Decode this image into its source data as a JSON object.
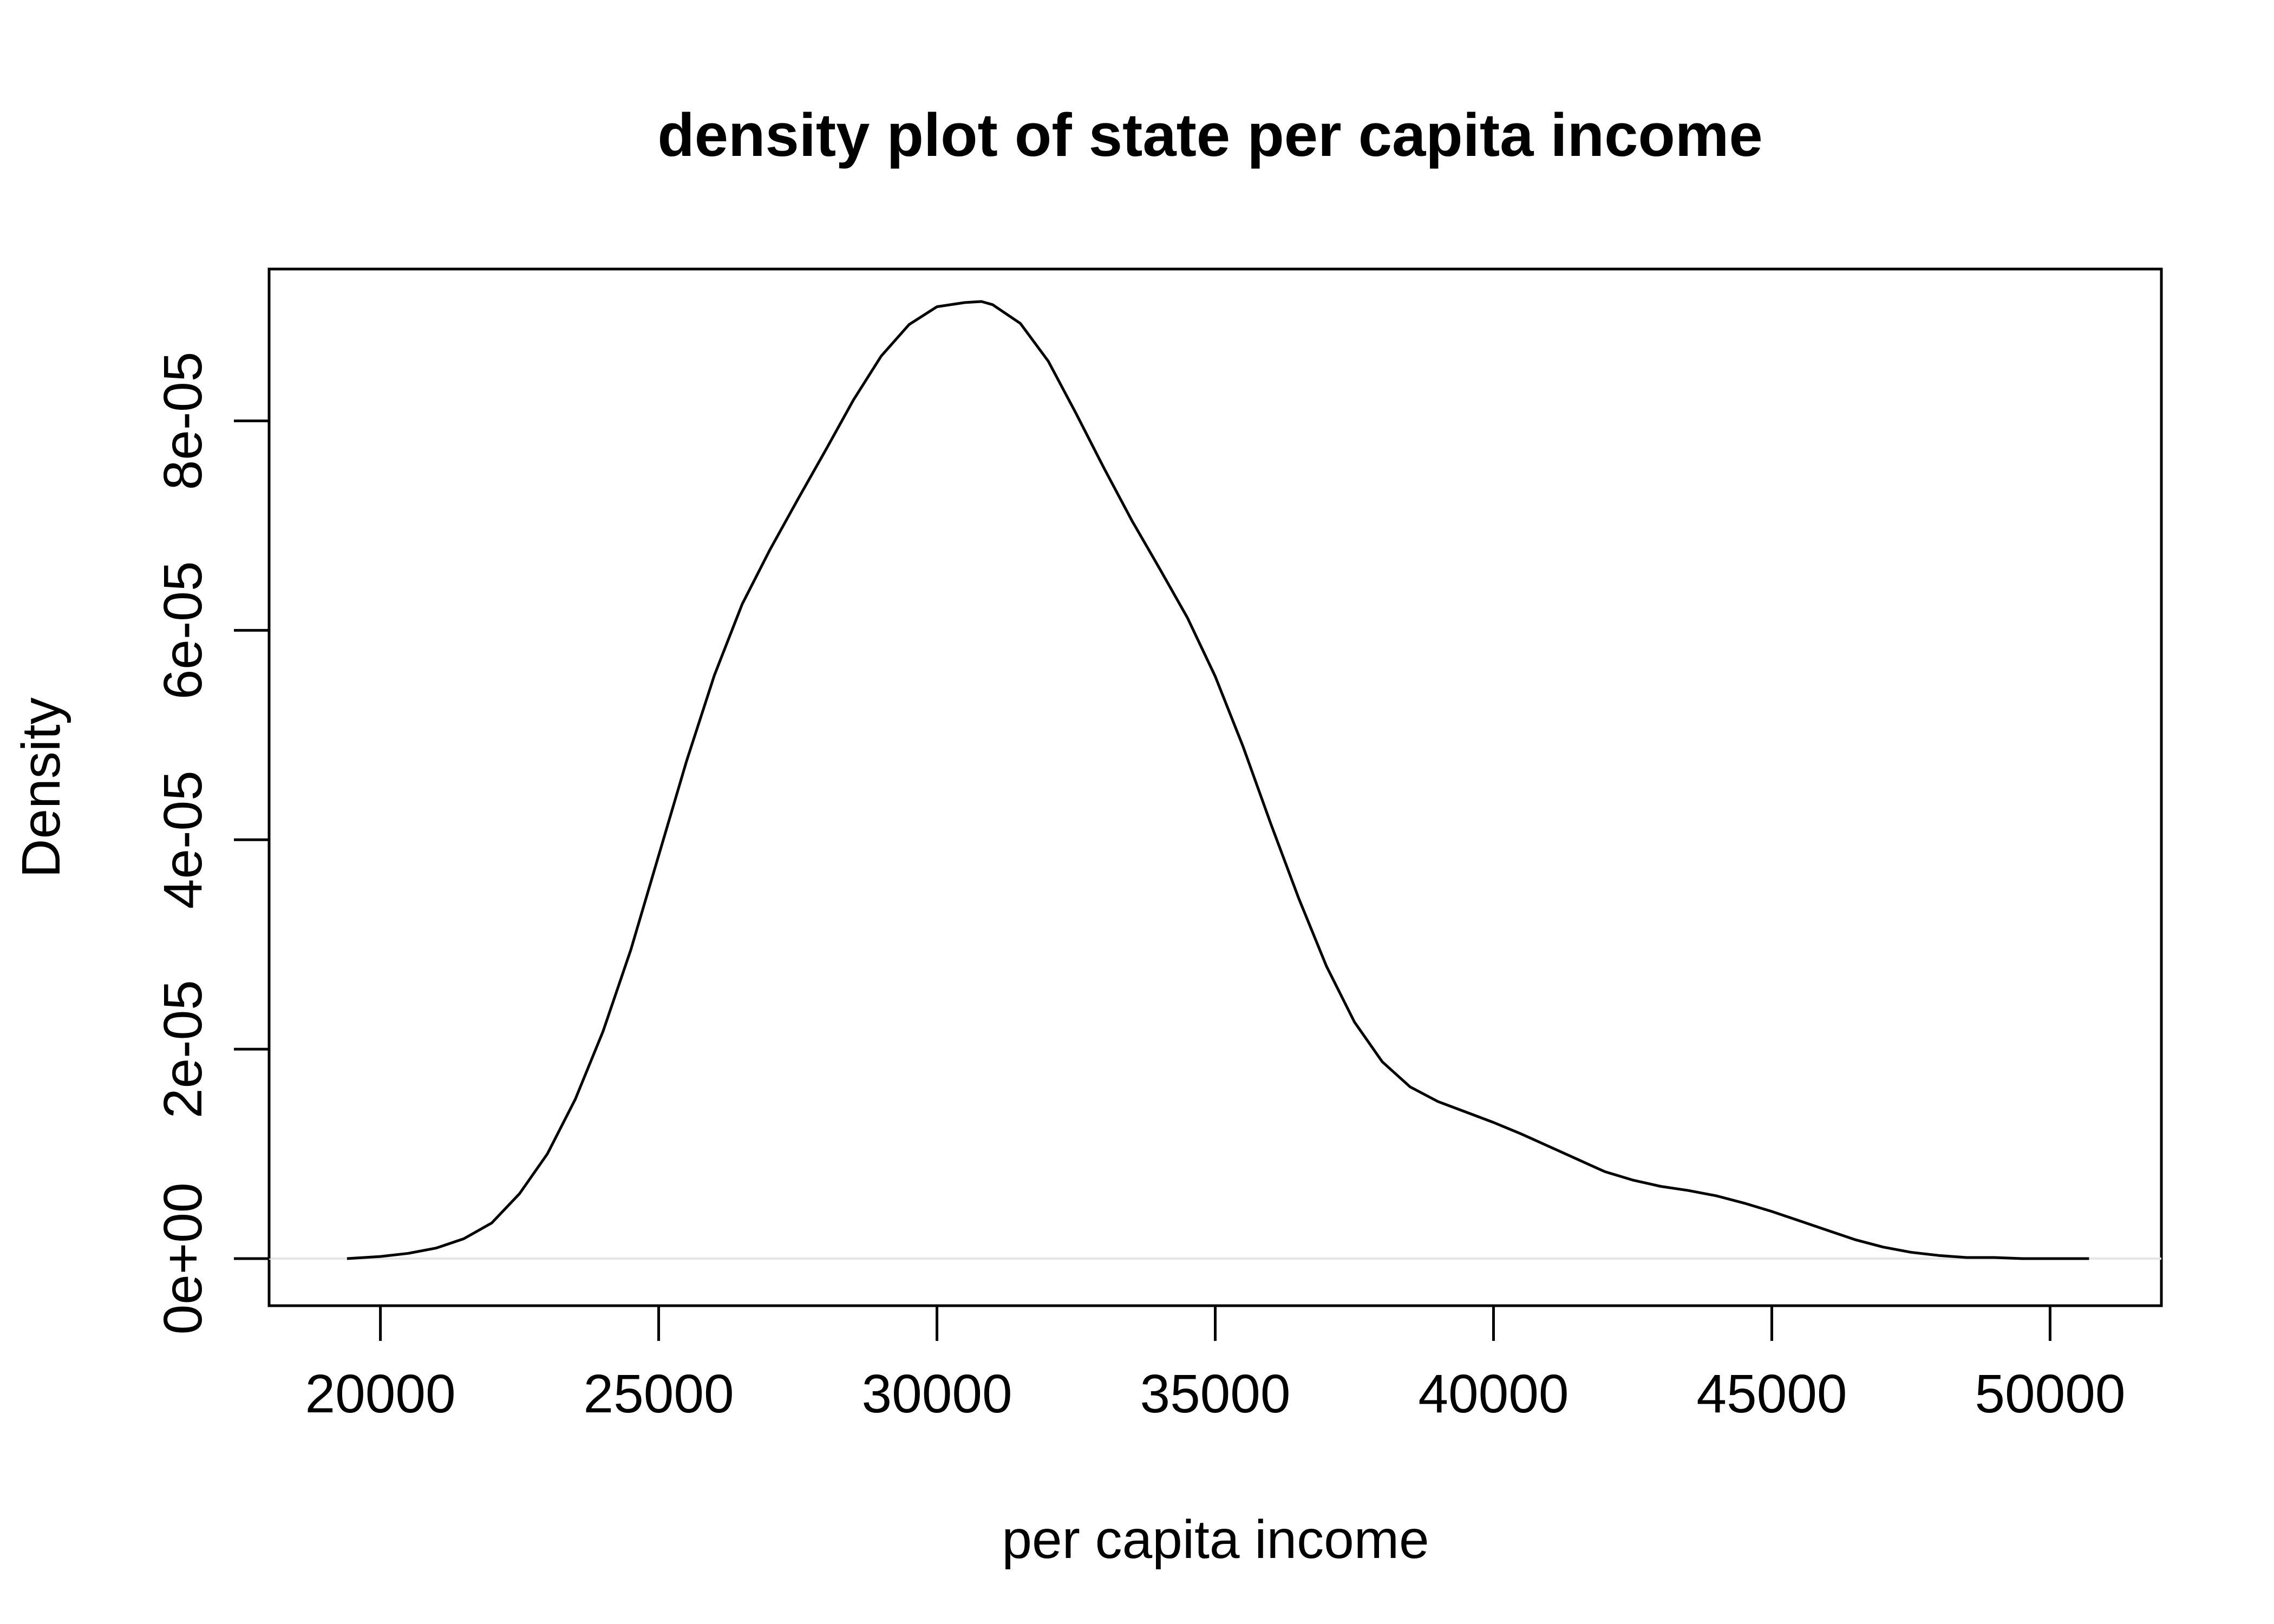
{
  "chart_data": {
    "type": "line",
    "title": "density plot of state per capita income",
    "xlabel": "per capita income",
    "ylabel": "Density",
    "xlim": [
      18000,
      52000
    ],
    "ylim": [
      -4.5e-06,
      9.45e-05
    ],
    "x_ticks": [
      20000,
      25000,
      30000,
      35000,
      40000,
      45000,
      50000
    ],
    "x_tick_labels": [
      "20000",
      "25000",
      "30000",
      "35000",
      "40000",
      "45000",
      "50000"
    ],
    "y_ticks": [
      0,
      2e-05,
      4e-05,
      6e-05,
      8e-05
    ],
    "y_tick_labels": [
      "0e+00",
      "2e-05",
      "4e-05",
      "6e-05",
      "8e-05"
    ],
    "grid": false,
    "legend": "none",
    "colors": {
      "line": "#000000",
      "baseline": "#e6e6e6"
    },
    "series": [
      {
        "x": [
          19400,
          20000,
          20500,
          21000,
          21500,
          22000,
          22500,
          23000,
          23500,
          24000,
          24500,
          25000,
          25500,
          26000,
          26500,
          27000,
          27500,
          28000,
          28500,
          29000,
          29500,
          30000,
          30500,
          30800,
          31000,
          31500,
          32000,
          32500,
          33000,
          33500,
          34000,
          34500,
          35000,
          35500,
          36000,
          36500,
          37000,
          37500,
          38000,
          38500,
          39000,
          39500,
          40000,
          40500,
          41000,
          41500,
          42000,
          42500,
          43000,
          43500,
          44000,
          44500,
          45000,
          45500,
          46000,
          46500,
          47000,
          47500,
          48000,
          48500,
          49000,
          49500,
          50000,
          50700
        ],
        "y": [
          0.0,
          2e-07,
          5e-07,
          1e-06,
          1.9e-06,
          3.4e-06,
          6.2e-06,
          1e-05,
          1.52e-05,
          2.17e-05,
          2.95e-05,
          3.85e-05,
          4.75e-05,
          5.57e-05,
          6.25e-05,
          6.77e-05,
          7.25e-05,
          7.72e-05,
          8.2e-05,
          8.62e-05,
          8.92e-05,
          9.09e-05,
          9.13e-05,
          9.14e-05,
          9.11e-05,
          8.93e-05,
          8.57e-05,
          8.07e-05,
          7.55e-05,
          7.05e-05,
          6.59e-05,
          6.12e-05,
          5.56e-05,
          4.89e-05,
          4.15e-05,
          3.44e-05,
          2.79e-05,
          2.26e-05,
          1.88e-05,
          1.64e-05,
          1.5e-05,
          1.4e-05,
          1.3e-05,
          1.19e-05,
          1.07e-05,
          9.5e-06,
          8.3e-06,
          7.5e-06,
          6.9e-06,
          6.5e-06,
          6e-06,
          5.3e-06,
          4.5e-06,
          3.6e-06,
          2.7e-06,
          1.8e-06,
          1.1e-06,
          6e-07,
          3e-07,
          1e-07,
          1e-07,
          0.0,
          0.0,
          0.0
        ]
      }
    ]
  }
}
